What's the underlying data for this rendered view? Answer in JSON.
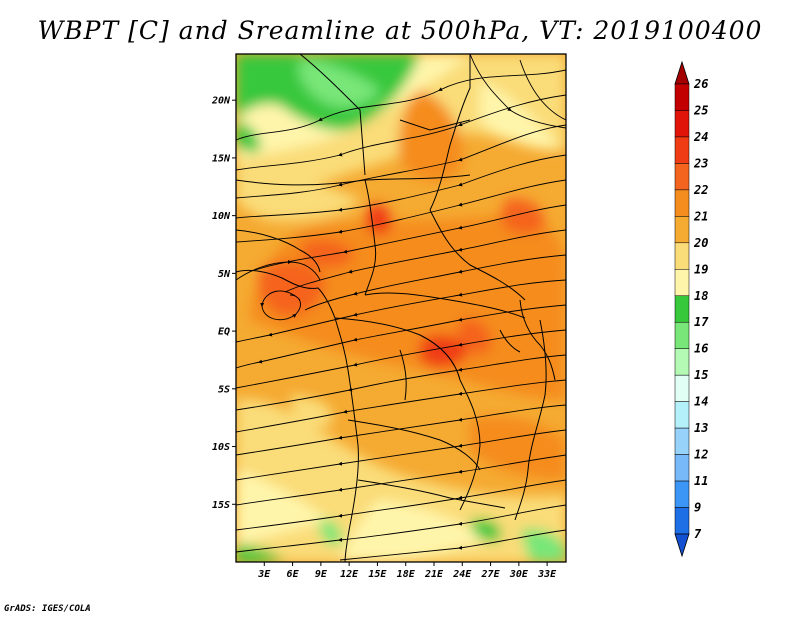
{
  "title": "WBPT [C] and Sreamline at 500hPa, VT: 2019100400",
  "footer": "GrADS: IGES/COLA",
  "map": {
    "lon_range": [
      0,
      35
    ],
    "lat_range": [
      -20,
      24
    ],
    "lat_ticks": [
      {
        "value": 20,
        "label": "20N"
      },
      {
        "value": 15,
        "label": "15N"
      },
      {
        "value": 10,
        "label": "10N"
      },
      {
        "value": 5,
        "label": "5N"
      },
      {
        "value": 0,
        "label": "EQ"
      },
      {
        "value": -5,
        "label": "5S"
      },
      {
        "value": -10,
        "label": "10S"
      },
      {
        "value": -15,
        "label": "15S"
      }
    ],
    "lon_ticks": [
      {
        "value": 3,
        "label": "3E"
      },
      {
        "value": 6,
        "label": "6E"
      },
      {
        "value": 9,
        "label": "9E"
      },
      {
        "value": 12,
        "label": "12E"
      },
      {
        "value": 15,
        "label": "15E"
      },
      {
        "value": 18,
        "label": "18E"
      },
      {
        "value": 21,
        "label": "21E"
      },
      {
        "value": 24,
        "label": "24E"
      },
      {
        "value": 27,
        "label": "27E"
      },
      {
        "value": 30,
        "label": "30E"
      },
      {
        "value": 33,
        "label": "33E"
      }
    ]
  },
  "colorbar": {
    "levels": [
      {
        "label": "26",
        "color": "#a50000"
      },
      {
        "label": "25",
        "color": "#c30000"
      },
      {
        "label": "24",
        "color": "#e1140a"
      },
      {
        "label": "23",
        "color": "#f03c14"
      },
      {
        "label": "22",
        "color": "#f5641e"
      },
      {
        "label": "21",
        "color": "#f58c1e"
      },
      {
        "label": "20",
        "color": "#f5aa32"
      },
      {
        "label": "19",
        "color": "#fadc78"
      },
      {
        "label": "18",
        "color": "#fff5aa"
      },
      {
        "label": "17",
        "color": "#37c83c"
      },
      {
        "label": "16",
        "color": "#78e678"
      },
      {
        "label": "15",
        "color": "#b4fab4"
      },
      {
        "label": "14",
        "color": "#e1fff5"
      },
      {
        "label": "13",
        "color": "#b4f0fa"
      },
      {
        "label": "12",
        "color": "#96d2fa"
      },
      {
        "label": "11",
        "color": "#78b9fa"
      },
      {
        "label": "9",
        "color": "#3c96f5"
      },
      {
        "label": "7",
        "color": "#1e6ee6"
      }
    ],
    "bottom_color": "#1450d2"
  }
}
